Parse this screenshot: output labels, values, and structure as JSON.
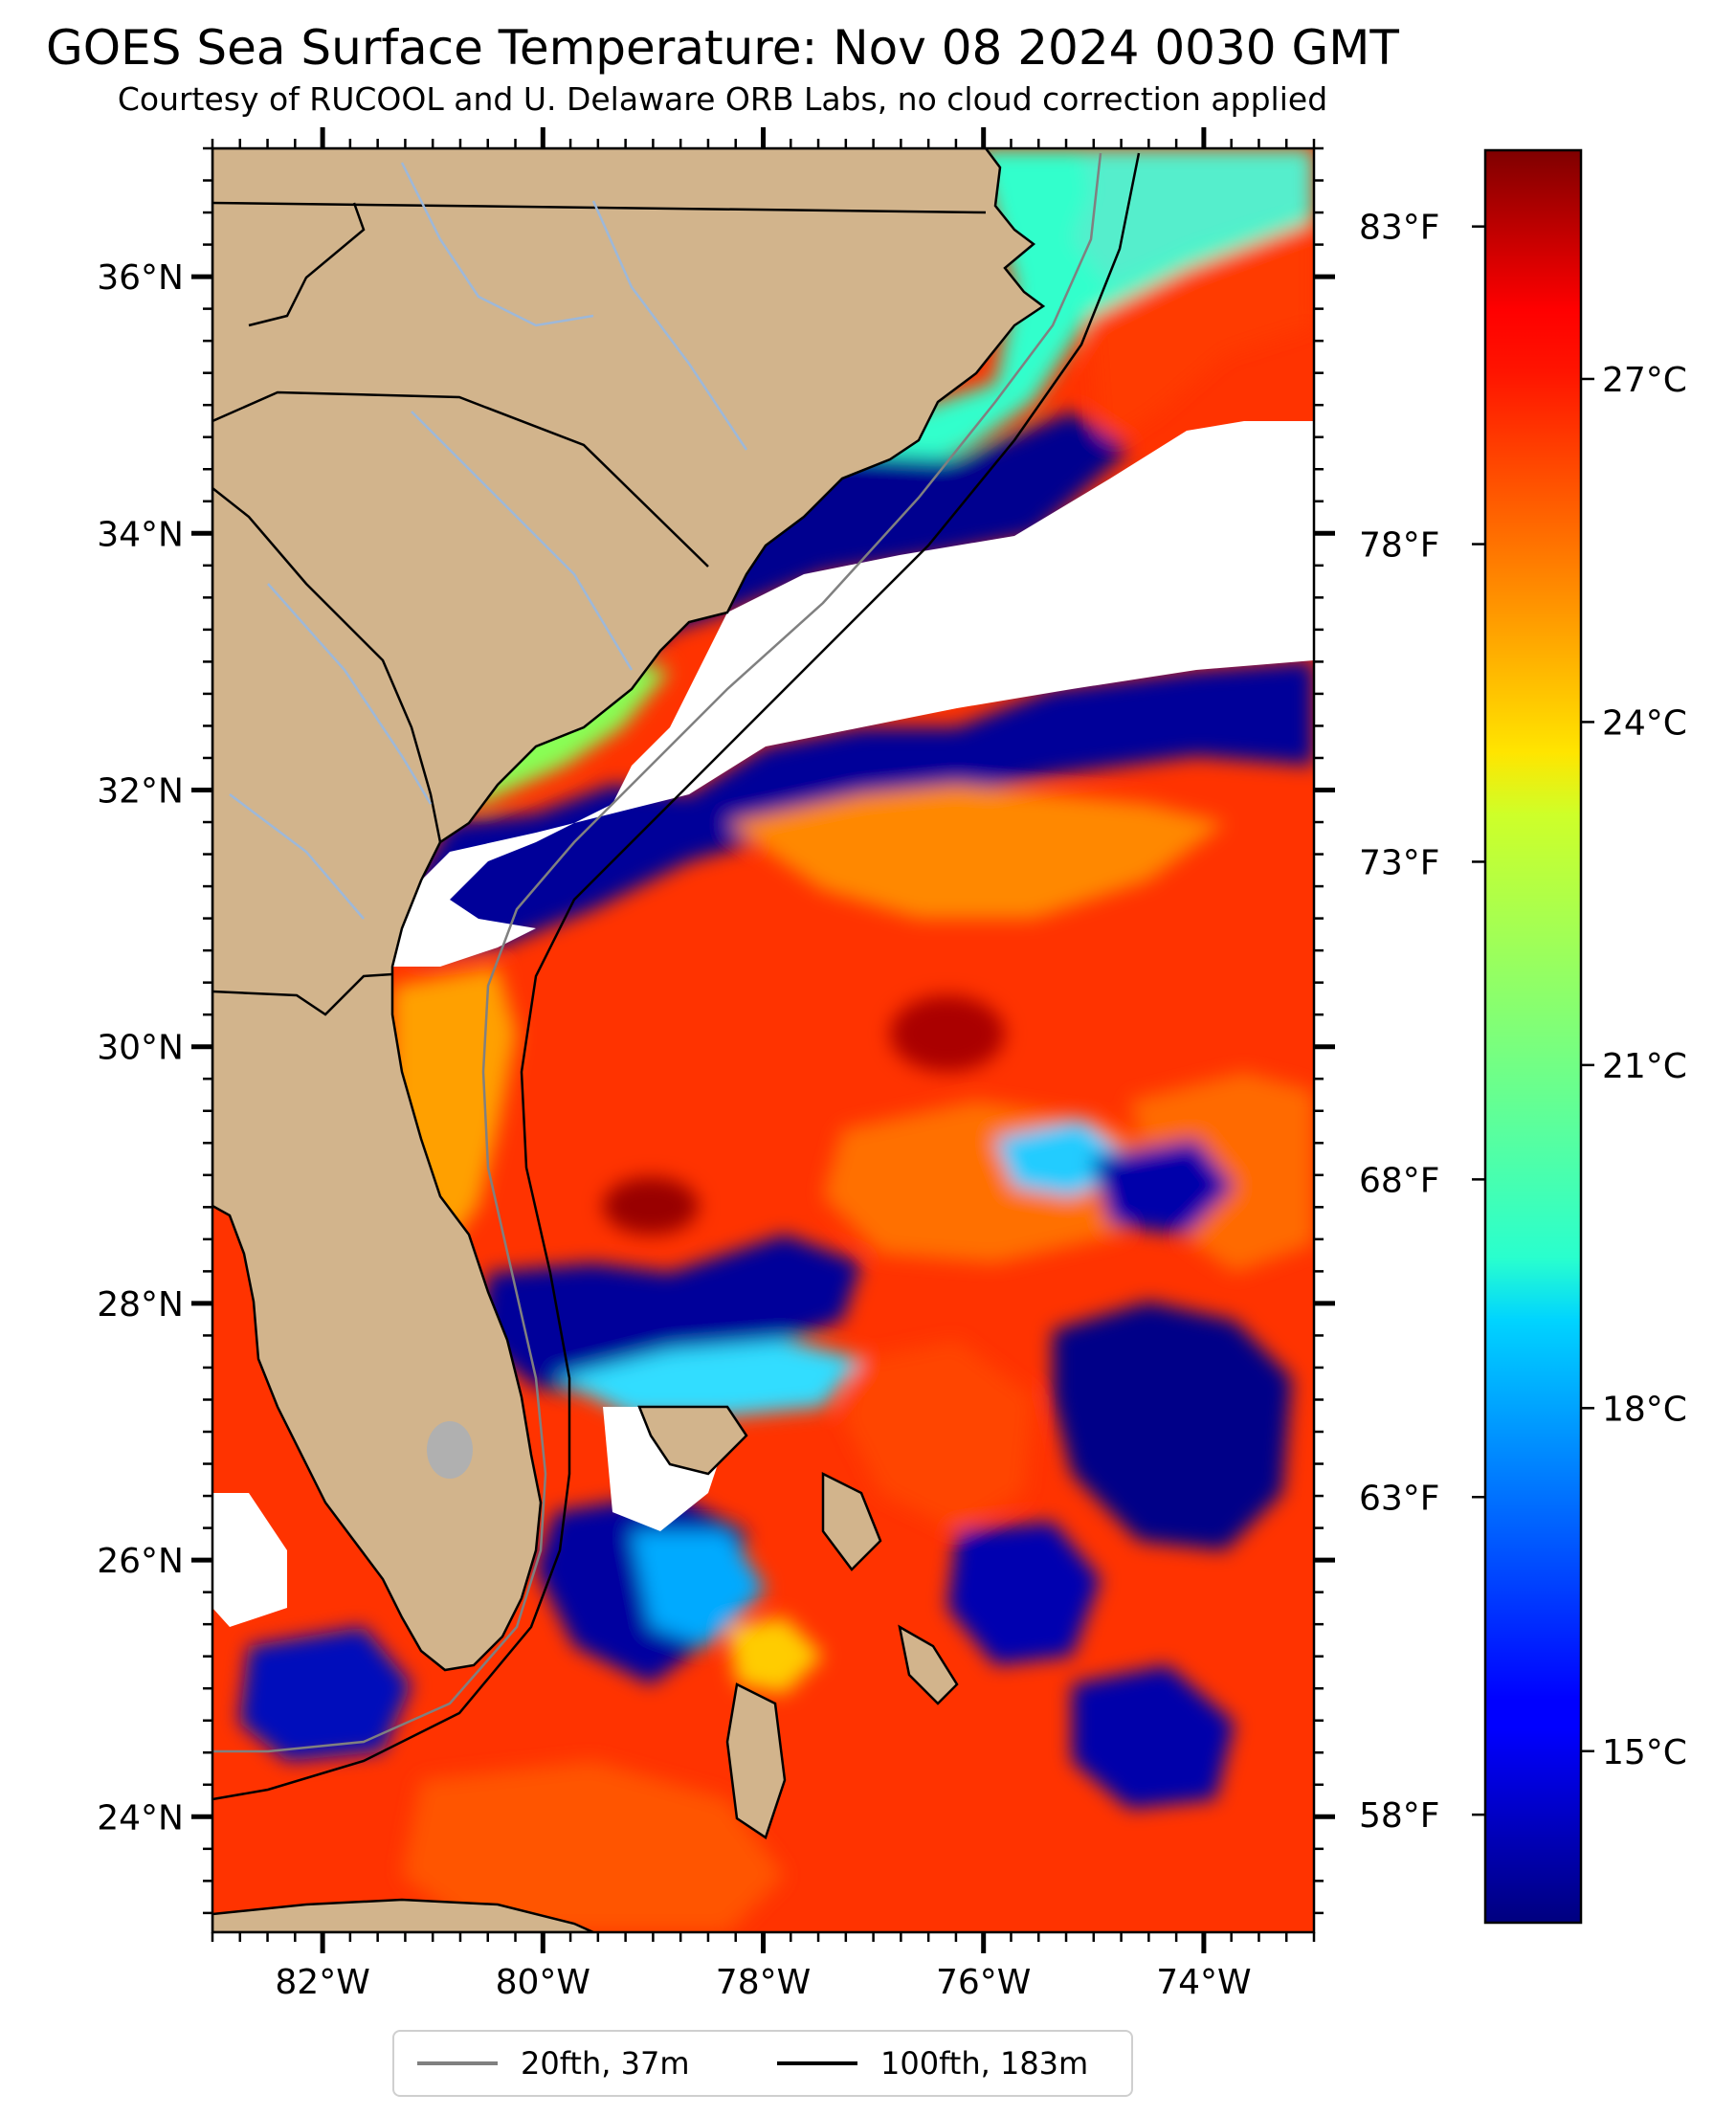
{
  "title": "GOES Sea Surface Temperature: Nov 08 2024 0030 GMT",
  "subtitle": "Courtesy of RUCOOL and U. Delaware ORB Labs, no cloud correction applied",
  "map": {
    "extent": {
      "lon_min": -83.0,
      "lon_max": -73.0,
      "lat_min": 23.1,
      "lat_max": 37.0
    },
    "lat_ticks": [
      {
        "value": 36,
        "label": "36°N"
      },
      {
        "value": 34,
        "label": "34°N"
      },
      {
        "value": 32,
        "label": "32°N"
      },
      {
        "value": 30,
        "label": "30°N"
      },
      {
        "value": 28,
        "label": "28°N"
      },
      {
        "value": 26,
        "label": "26°N"
      },
      {
        "value": 24,
        "label": "24°N"
      }
    ],
    "lon_ticks": [
      {
        "value": -82,
        "label": "82°W"
      },
      {
        "value": -80,
        "label": "80°W"
      },
      {
        "value": -78,
        "label": "78°W"
      },
      {
        "value": -76,
        "label": "76°W"
      },
      {
        "value": -74,
        "label": "74°W"
      }
    ],
    "colors": {
      "land": "#d2b48c",
      "cloud_mask": "#ffffff",
      "coastline": "#000000",
      "rivers": "#9db8d9",
      "bathy_20fth": "#808080",
      "bathy_100fth": "#000000"
    }
  },
  "colorbar": {
    "celsius_range": [
      13.5,
      29.0
    ],
    "celsius_ticks": [
      {
        "value": 15,
        "label": "15°C"
      },
      {
        "value": 18,
        "label": "18°C"
      },
      {
        "value": 21,
        "label": "21°C"
      },
      {
        "value": 24,
        "label": "24°C"
      },
      {
        "value": 27,
        "label": "27°C"
      }
    ],
    "fahrenheit_ticks": [
      {
        "value": 58,
        "label": "58°F"
      },
      {
        "value": 63,
        "label": "63°F"
      },
      {
        "value": 68,
        "label": "68°F"
      },
      {
        "value": 73,
        "label": "73°F"
      },
      {
        "value": 78,
        "label": "78°F"
      },
      {
        "value": 83,
        "label": "83°F"
      }
    ],
    "colormap": "jet"
  },
  "legend": {
    "items": [
      {
        "label": "20fth, 37m",
        "color": "#808080"
      },
      {
        "label": "100fth, 183m",
        "color": "#000000"
      }
    ]
  }
}
